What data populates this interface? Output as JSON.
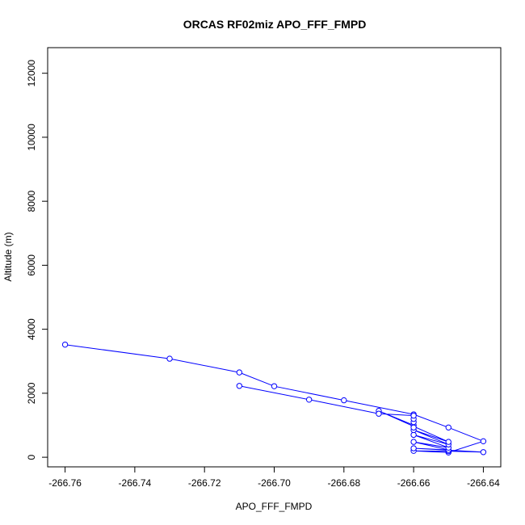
{
  "chart_data": {
    "type": "line",
    "title": "ORCAS RF02miz APO_FFF_FMPD",
    "xlabel": "APO_FFF_FMPD",
    "ylabel": "Altitude (m)",
    "xlim": [
      -266.765,
      -266.635
    ],
    "ylim": [
      -300,
      12800
    ],
    "x_ticks": [
      -266.76,
      -266.74,
      -266.72,
      -266.7,
      -266.68,
      -266.66,
      -266.64
    ],
    "x_tick_labels": [
      "-266.76",
      "-266.74",
      "-266.72",
      "-266.70",
      "-266.68",
      "-266.66",
      "-266.64"
    ],
    "y_ticks": [
      0,
      2000,
      4000,
      6000,
      8000,
      10000,
      12000
    ],
    "y_tick_labels": [
      "0",
      "2000",
      "4000",
      "6000",
      "8000",
      "10000",
      "12000"
    ],
    "grid": false,
    "series_color": "#0000ff",
    "marker": "open-circle",
    "series": [
      {
        "x": [
          -266.76,
          -266.73,
          -266.71,
          -266.7,
          -266.68,
          -266.66,
          -266.65,
          -266.64,
          -266.65,
          -266.66,
          -266.65,
          -266.64,
          -266.66,
          -266.65,
          -266.66,
          -266.65,
          -266.66,
          -266.65,
          -266.66,
          -266.65,
          -266.67,
          -266.66,
          -266.66,
          -266.66,
          -266.66,
          -266.66,
          -266.67,
          -266.69,
          -266.71
        ],
        "y": [
          3520,
          3080,
          2650,
          2220,
          1780,
          1340,
          930,
          500,
          150,
          200,
          190,
          160,
          280,
          230,
          480,
          300,
          700,
          400,
          850,
          480,
          1450,
          1000,
          930,
          1100,
          1200,
          1300,
          1360,
          1800,
          2230
        ]
      }
    ]
  }
}
